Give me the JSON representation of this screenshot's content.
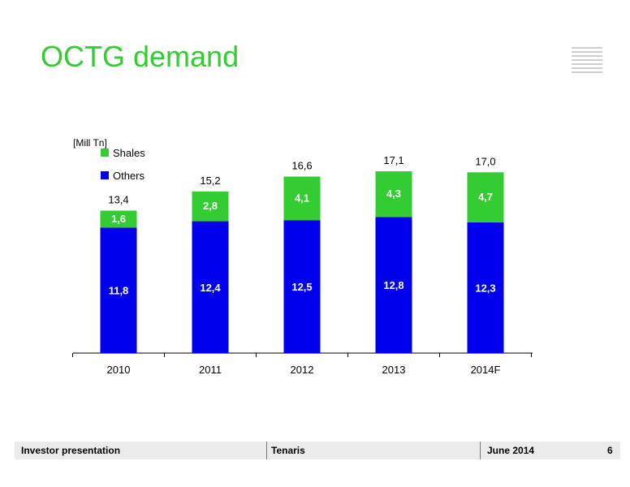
{
  "header": {
    "title": "OCTG demand"
  },
  "footer": {
    "left": "Investor presentation",
    "center": "Tenaris",
    "right": "June 2014",
    "page": "6"
  },
  "chart_data": {
    "type": "bar",
    "stacked": true,
    "unit_label": "[Mill Tn]",
    "categories": [
      "2010",
      "2011",
      "2012",
      "2013",
      "2014F"
    ],
    "series": [
      {
        "name": "Others",
        "color": "#0000ee",
        "values": [
          11.8,
          12.4,
          12.5,
          12.8,
          12.3
        ],
        "labels": [
          "11,8",
          "12,4",
          "12,5",
          "12,8",
          "12,3"
        ]
      },
      {
        "name": "Shales",
        "color": "#33cc33",
        "values": [
          1.6,
          2.8,
          4.1,
          4.3,
          4.7
        ],
        "labels": [
          "1,6",
          "2,8",
          "4,1",
          "4,3",
          "4,7"
        ]
      }
    ],
    "totals": [
      "13,4",
      "15,2",
      "16,6",
      "17,1",
      "17,0"
    ],
    "ylim": [
      0,
      17.1
    ],
    "legend": {
      "position": "top-left",
      "items": [
        "Shales",
        "Others"
      ]
    },
    "grid": false
  }
}
